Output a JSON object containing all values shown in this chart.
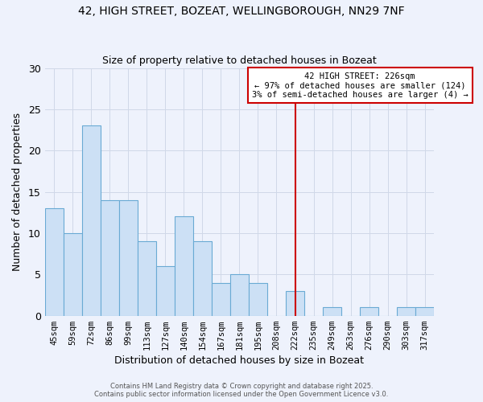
{
  "title_line1": "42, HIGH STREET, BOZEAT, WELLINGBOROUGH, NN29 7NF",
  "title_line2": "Size of property relative to detached houses in Bozeat",
  "xlabel": "Distribution of detached houses by size in Bozeat",
  "ylabel": "Number of detached properties",
  "bar_labels": [
    "45sqm",
    "59sqm",
    "72sqm",
    "86sqm",
    "99sqm",
    "113sqm",
    "127sqm",
    "140sqm",
    "154sqm",
    "167sqm",
    "181sqm",
    "195sqm",
    "208sqm",
    "222sqm",
    "235sqm",
    "249sqm",
    "263sqm",
    "276sqm",
    "290sqm",
    "303sqm",
    "317sqm"
  ],
  "bar_values": [
    13,
    10,
    23,
    14,
    14,
    9,
    6,
    12,
    9,
    4,
    5,
    4,
    0,
    3,
    0,
    1,
    0,
    1,
    0,
    1,
    1
  ],
  "bar_color": "#cce0f5",
  "bar_edge_color": "#6aaad4",
  "vline_x_index": 13,
  "vline_color": "#cc0000",
  "annotation_line1": "42 HIGH STREET: 226sqm",
  "annotation_line2": "← 97% of detached houses are smaller (124)",
  "annotation_line3": "3% of semi-detached houses are larger (4) →",
  "annotation_box_color": "#ffffff",
  "annotation_box_edge_color": "#cc0000",
  "ylim": [
    0,
    30
  ],
  "yticks": [
    0,
    5,
    10,
    15,
    20,
    25,
    30
  ],
  "grid_color": "#d0d8e8",
  "background_color": "#eef2fc",
  "footnote1": "Contains HM Land Registry data © Crown copyright and database right 2025.",
  "footnote2": "Contains public sector information licensed under the Open Government Licence v3.0."
}
